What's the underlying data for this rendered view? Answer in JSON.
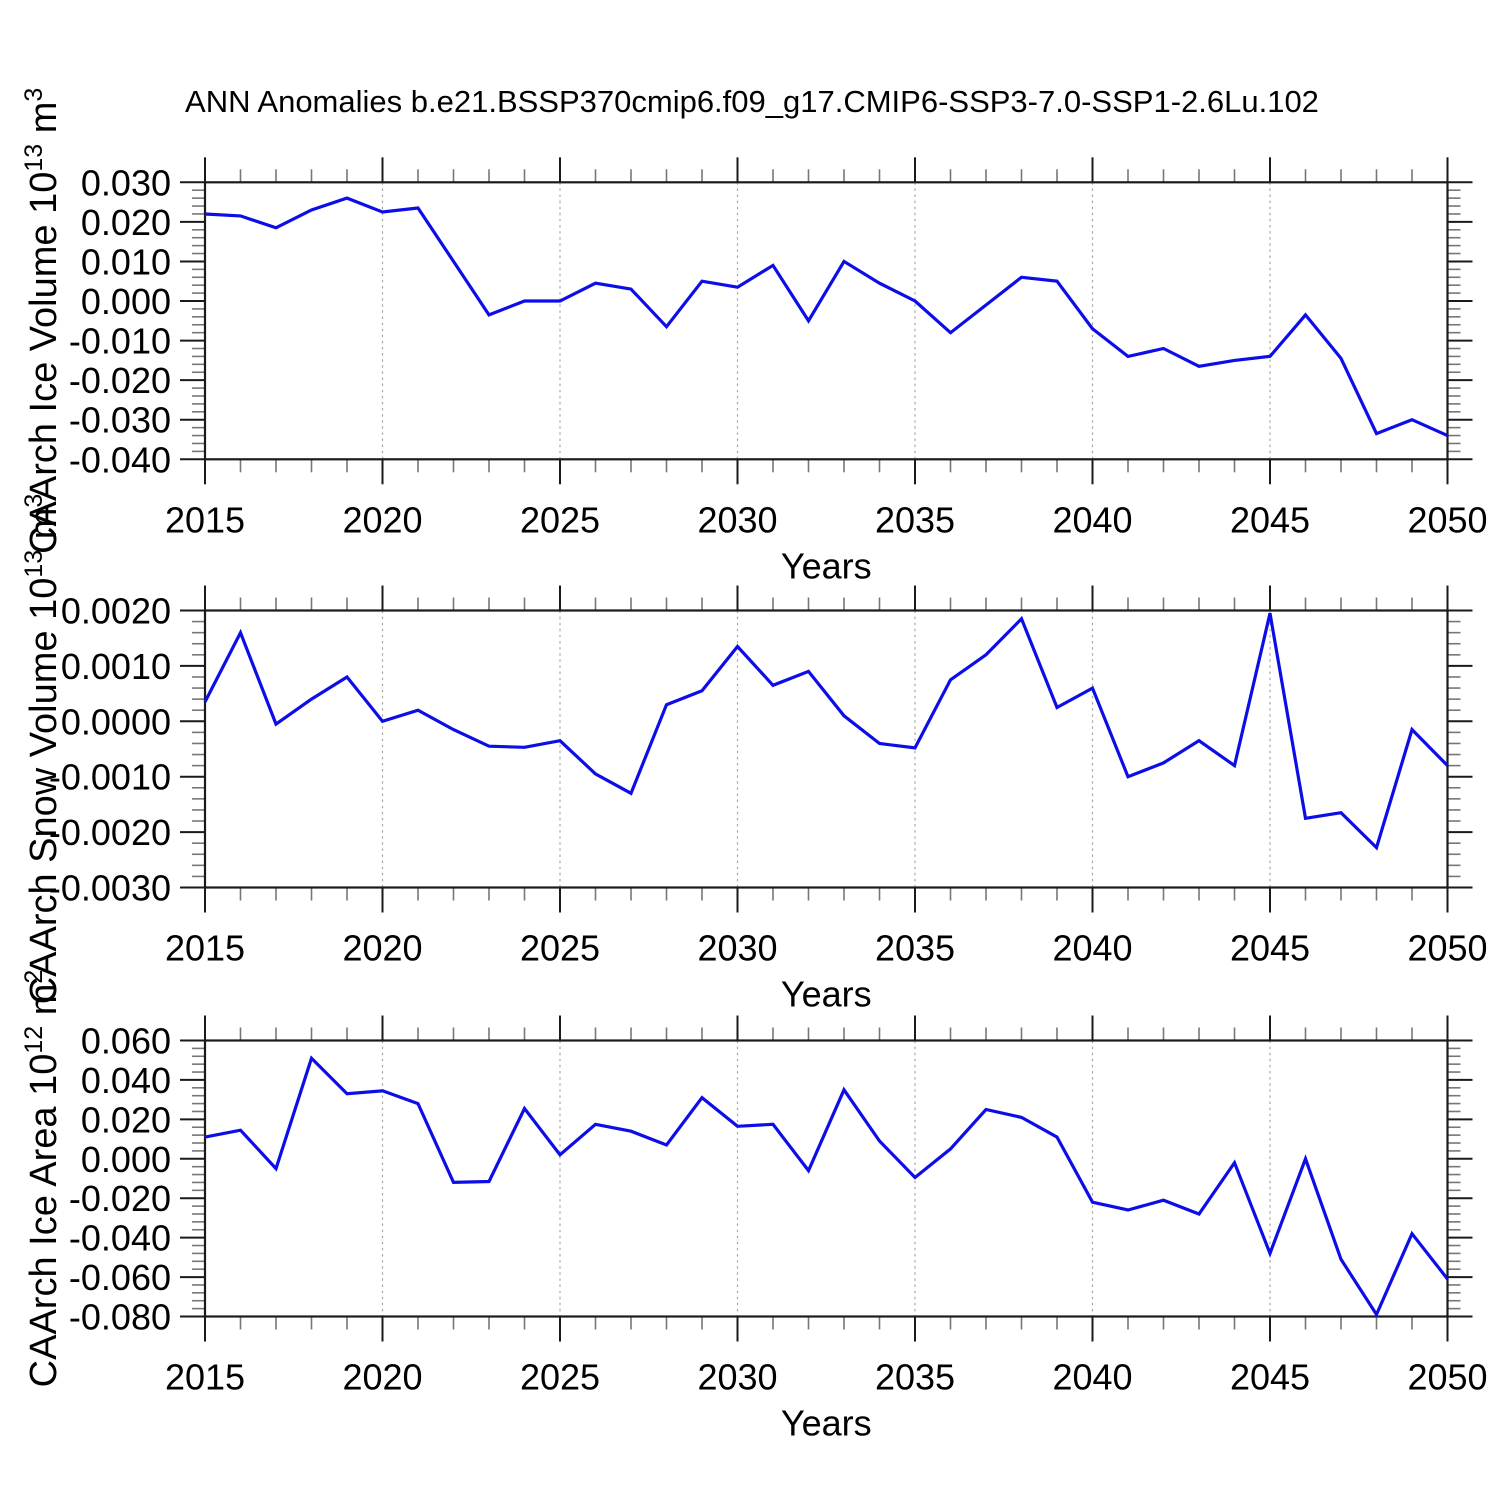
{
  "title": "ANN Anomalies b.e21.BSSP370cmip6.f09_g17.CMIP6-SSP3-7.0-SSP1-2.6Lu.102",
  "colors": {
    "line": "#0d0de8",
    "frame": "#1a1a1a",
    "grid": "#a9a9a9",
    "text": "#000000"
  },
  "chart_data": [
    {
      "type": "line",
      "title": "",
      "xlabel": "Years",
      "ylabel": "CAArch Ice Volume 10^13 m^3",
      "ylabel_parts": {
        "main": "CAArch Ice Volume 10",
        "exp": "13",
        "unit": " m",
        "unit_exp": "3"
      },
      "x": [
        2015,
        2016,
        2017,
        2018,
        2019,
        2020,
        2021,
        2022,
        2023,
        2024,
        2025,
        2026,
        2027,
        2028,
        2029,
        2030,
        2031,
        2032,
        2033,
        2034,
        2035,
        2036,
        2037,
        2038,
        2039,
        2040,
        2041,
        2042,
        2043,
        2044,
        2045,
        2046,
        2047,
        2048,
        2049,
        2050
      ],
      "values": [
        0.022,
        0.0215,
        0.0185,
        0.023,
        0.026,
        0.0225,
        0.0235,
        0.01,
        -0.0035,
        0.0,
        0.0,
        0.0045,
        0.003,
        -0.0065,
        0.005,
        0.0035,
        0.009,
        -0.005,
        0.01,
        0.0045,
        0.0,
        -0.008,
        -0.001,
        0.006,
        0.005,
        -0.007,
        -0.014,
        -0.012,
        -0.0165,
        -0.015,
        -0.014,
        -0.0035,
        -0.0145,
        -0.0335,
        -0.03,
        -0.034
      ],
      "xlim": [
        2015,
        2050
      ],
      "ylim": [
        -0.04,
        0.03
      ],
      "y_major": 0.01,
      "y_minor": 0.002,
      "y_tick_labels": [
        "0.030",
        "0.020",
        "0.010",
        "0.000",
        "-0.010",
        "-0.020",
        "-0.030",
        "-0.040"
      ],
      "x_tick_labels": [
        "2015",
        "2020",
        "2025",
        "2030",
        "2035",
        "2040",
        "2045",
        "2050"
      ],
      "grid_years": [
        2020,
        2025,
        2030,
        2035,
        2040,
        2045
      ],
      "grid": "vertical-dashed",
      "legend": "none",
      "line_color": "#0d0de8"
    },
    {
      "type": "line",
      "title": "",
      "xlabel": "Years",
      "ylabel": "CAArch Snow Volume 10^13 m^3",
      "ylabel_parts": {
        "main": "CAArch Snow Volume 10",
        "exp": "13",
        "unit": " m",
        "unit_exp": "3"
      },
      "x": [
        2015,
        2016,
        2017,
        2018,
        2019,
        2020,
        2021,
        2022,
        2023,
        2024,
        2025,
        2026,
        2027,
        2028,
        2029,
        2030,
        2031,
        2032,
        2033,
        2034,
        2035,
        2036,
        2037,
        2038,
        2039,
        2040,
        2041,
        2042,
        2043,
        2044,
        2045,
        2046,
        2047,
        2048,
        2049,
        2050
      ],
      "values": [
        0.00035,
        0.0016,
        -5e-05,
        0.0004,
        0.0008,
        0.0,
        0.0002,
        -0.00015,
        -0.00045,
        -0.00047,
        -0.00035,
        -0.00095,
        -0.0013,
        0.0003,
        0.00055,
        0.00135,
        0.00065,
        0.0009,
        0.0001,
        -0.0004,
        -0.00048,
        0.00075,
        0.0012,
        0.00185,
        0.00025,
        0.0006,
        -0.001,
        -0.00075,
        -0.00035,
        -0.0008,
        0.00195,
        -0.00175,
        -0.00165,
        -0.00228,
        -0.00015,
        -0.0008
      ],
      "xlim": [
        2015,
        2050
      ],
      "ylim": [
        -0.003,
        0.002
      ],
      "y_major": 0.001,
      "y_minor": 0.0002,
      "y_tick_labels": [
        "0.0020",
        "0.0010",
        "0.0000",
        "-0.0010",
        "-0.0020",
        "-0.0030"
      ],
      "x_tick_labels": [
        "2015",
        "2020",
        "2025",
        "2030",
        "2035",
        "2040",
        "2045",
        "2050"
      ],
      "grid_years": [
        2020,
        2025,
        2030,
        2035,
        2040,
        2045
      ],
      "grid": "vertical-dashed",
      "legend": "none",
      "line_color": "#0d0de8"
    },
    {
      "type": "line",
      "title": "",
      "xlabel": "Years",
      "ylabel": "CAArch Ice Area 10^12 m^2",
      "ylabel_parts": {
        "main": "CAArch Ice Area 10",
        "exp": "12",
        "unit": " m",
        "unit_exp": "2"
      },
      "x": [
        2015,
        2016,
        2017,
        2018,
        2019,
        2020,
        2021,
        2022,
        2023,
        2024,
        2025,
        2026,
        2027,
        2028,
        2029,
        2030,
        2031,
        2032,
        2033,
        2034,
        2035,
        2036,
        2037,
        2038,
        2039,
        2040,
        2041,
        2042,
        2043,
        2044,
        2045,
        2046,
        2047,
        2048,
        2049,
        2050
      ],
      "values": [
        0.011,
        0.0145,
        -0.005,
        0.051,
        0.033,
        0.0345,
        0.028,
        -0.012,
        -0.0115,
        0.0255,
        0.002,
        0.0175,
        0.014,
        0.007,
        0.031,
        0.0165,
        0.0175,
        -0.006,
        0.035,
        0.009,
        -0.0095,
        0.005,
        0.025,
        0.021,
        0.011,
        -0.022,
        -0.026,
        -0.021,
        -0.028,
        -0.002,
        -0.048,
        0.0,
        -0.051,
        -0.079,
        -0.038,
        -0.061
      ],
      "xlim": [
        2015,
        2050
      ],
      "ylim": [
        -0.08,
        0.06
      ],
      "y_major": 0.02,
      "y_minor": 0.004,
      "y_tick_labels": [
        "0.060",
        "0.040",
        "0.020",
        "0.000",
        "-0.020",
        "-0.040",
        "-0.060",
        "-0.080"
      ],
      "x_tick_labels": [
        "2015",
        "2020",
        "2025",
        "2030",
        "2035",
        "2040",
        "2045",
        "2050"
      ],
      "grid_years": [
        2020,
        2025,
        2030,
        2035,
        2040,
        2045
      ],
      "grid": "vertical-dashed",
      "legend": "none",
      "line_color": "#0d0de8"
    }
  ]
}
